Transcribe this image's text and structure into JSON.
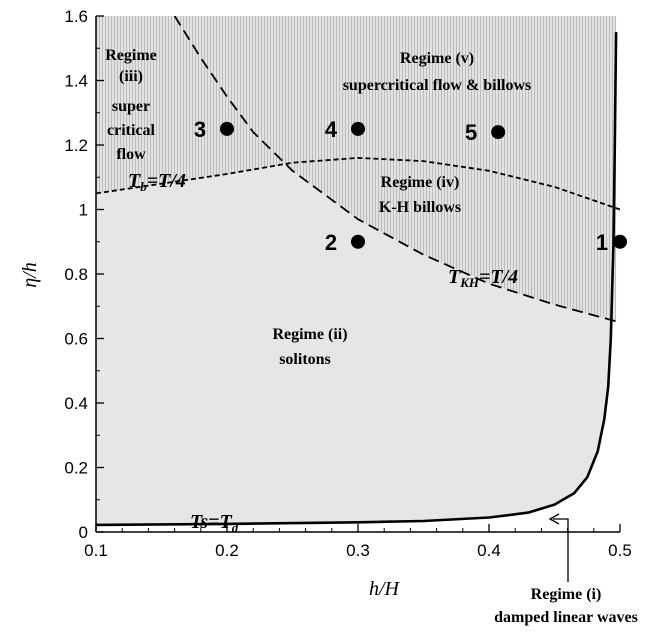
{
  "chart_data": {
    "type": "line",
    "xlabel": "h/H",
    "ylabel": "η/h",
    "xlim": [
      0.1,
      0.5
    ],
    "ylim": [
      0,
      1.6
    ],
    "x_ticks": [
      "0.1",
      "0.2",
      "0.3",
      "0.4",
      "0.5"
    ],
    "x_tick_values": [
      0.1,
      0.2,
      0.3,
      0.4,
      0.5
    ],
    "y_ticks": [
      "0",
      "0.2",
      "0.4",
      "0.6",
      "0.8",
      "1",
      "1.2",
      "1.4",
      "1.6"
    ],
    "y_tick_values": [
      0,
      0.2,
      0.4,
      0.6,
      0.8,
      1.0,
      1.2,
      1.4,
      1.6
    ],
    "grid": false,
    "curves": {
      "ts_td": {
        "label_main": "Ts=T",
        "label_sub": "d",
        "style": "solid",
        "x": [
          0.1,
          0.2,
          0.3,
          0.35,
          0.4,
          0.43,
          0.45,
          0.465,
          0.475,
          0.483,
          0.488,
          0.491,
          0.493,
          0.495,
          0.496,
          0.497
        ],
        "y": [
          0.022,
          0.025,
          0.03,
          0.034,
          0.045,
          0.06,
          0.085,
          0.12,
          0.17,
          0.25,
          0.35,
          0.45,
          0.6,
          0.9,
          1.2,
          1.55
        ]
      },
      "tb": {
        "label_main": "T",
        "label_sub": "b",
        "label_rest": "=T/4",
        "style": "dashed-short",
        "x": [
          0.1,
          0.15,
          0.2,
          0.25,
          0.3,
          0.35,
          0.4,
          0.45,
          0.5
        ],
        "y": [
          1.05,
          1.08,
          1.11,
          1.145,
          1.16,
          1.15,
          1.12,
          1.07,
          1.0
        ]
      },
      "tkh": {
        "label_main": "T",
        "label_sub": "KH",
        "label_rest": "=T/4",
        "style": "dashed-long",
        "x": [
          0.16,
          0.18,
          0.2,
          0.22,
          0.25,
          0.28,
          0.3,
          0.35,
          0.4,
          0.45,
          0.5
        ],
        "y": [
          1.6,
          1.47,
          1.35,
          1.24,
          1.12,
          1.03,
          0.97,
          0.86,
          0.77,
          0.705,
          0.65
        ]
      }
    },
    "points": [
      {
        "label": "1",
        "x": 0.5,
        "y": 0.9
      },
      {
        "label": "2",
        "x": 0.3,
        "y": 0.9
      },
      {
        "label": "3",
        "x": 0.2,
        "y": 1.25
      },
      {
        "label": "4",
        "x": 0.3,
        "y": 1.25
      },
      {
        "label": "5",
        "x": 0.407,
        "y": 1.24
      }
    ],
    "regimes": [
      {
        "id": "regime-iii",
        "lines": [
          "Regime",
          "(iii)",
          "super",
          "critical",
          "flow"
        ]
      },
      {
        "id": "regime-v",
        "lines": [
          "Regime (v)",
          "supercritical flow & billows"
        ]
      },
      {
        "id": "regime-iv",
        "lines": [
          "Regime (iv)",
          "K-H billows"
        ]
      },
      {
        "id": "regime-ii",
        "lines": [
          "Regime (ii)",
          "solitons"
        ]
      },
      {
        "id": "regime-i",
        "lines": [
          "Regime (i)",
          "damped linear waves"
        ]
      }
    ],
    "colors": {
      "regime_ii_fill": "#e6e6e6",
      "upper_regime_fill": "#d4d4d4",
      "curve": "#000000"
    }
  }
}
